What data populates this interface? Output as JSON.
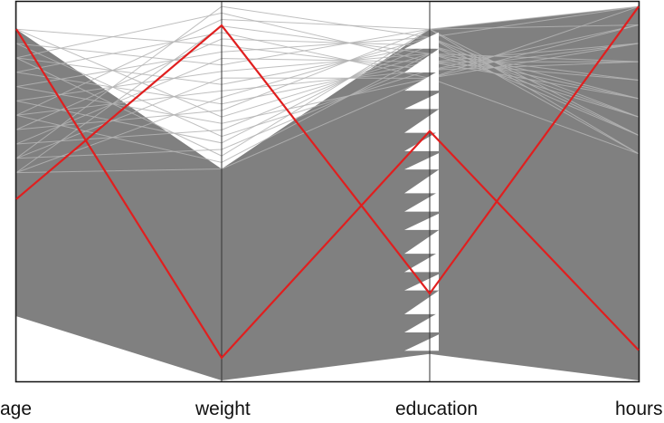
{
  "chart_data": {
    "type": "parallel-coordinates",
    "title": "",
    "axes": [
      "age",
      "weight",
      "education",
      "hours"
    ],
    "value_range": [
      0,
      1
    ],
    "grid": false,
    "background_color": "#808080",
    "colors": {
      "background_lines": "#808080",
      "light_background_lines": "#b4b4b4",
      "highlight": "#e01f1f"
    },
    "background_band": {
      "upper": [
        0.93,
        0.56,
        0.93,
        0.99
      ],
      "lower": [
        0.17,
        0.0,
        0.07,
        0.0
      ]
    },
    "highlighted_series": [
      {
        "values": [
          0.93,
          0.06,
          0.66,
          0.08
        ]
      },
      {
        "values": [
          0.48,
          0.94,
          0.23,
          0.99
        ]
      }
    ]
  }
}
